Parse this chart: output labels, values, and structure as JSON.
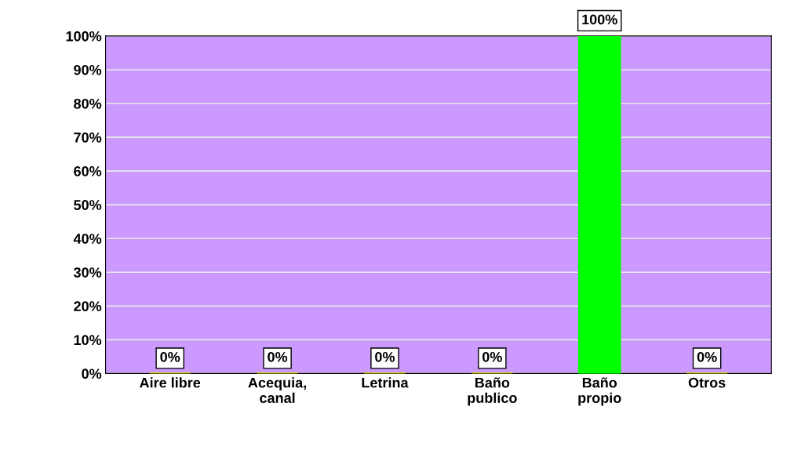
{
  "chart_data": {
    "type": "bar",
    "categories": [
      "Aire libre",
      "Acequia,\ncanal",
      "Letrina",
      "Baño\npublico",
      "Baño\npropio",
      "Otros"
    ],
    "values": [
      0,
      0,
      0,
      0,
      100,
      0
    ],
    "colors": [
      "#cccc00",
      "#cccc00",
      "#cccc00",
      "#cccc00",
      "#00ff00",
      "#cccc00"
    ],
    "value_labels": [
      "0%",
      "0%",
      "0%",
      "0%",
      "100%",
      "0%"
    ],
    "ylim": [
      0,
      100
    ],
    "yticks": [
      {
        "value": 0,
        "label": "0%"
      },
      {
        "value": 10,
        "label": "10%"
      },
      {
        "value": 20,
        "label": "20%"
      },
      {
        "value": 30,
        "label": "30%"
      },
      {
        "value": 40,
        "label": "40%"
      },
      {
        "value": 50,
        "label": "50%"
      },
      {
        "value": 60,
        "label": "60%"
      },
      {
        "value": 70,
        "label": "70%"
      },
      {
        "value": 80,
        "label": "80%"
      },
      {
        "value": 90,
        "label": "90%"
      },
      {
        "value": 100,
        "label": "100%"
      }
    ],
    "grid": "y"
  }
}
